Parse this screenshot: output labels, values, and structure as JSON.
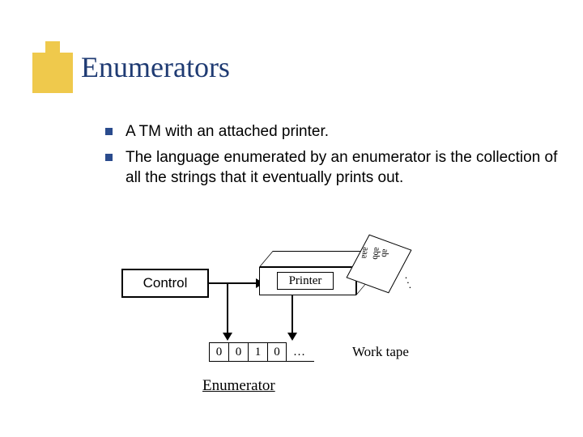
{
  "accent_color": "#efc94c",
  "title_color": "#1f3b73",
  "bullet_color": "#2a4b8d",
  "background_color": "#ffffff",
  "title": "Enumerators",
  "title_fontsize": 36,
  "bullets": [
    "A TM with an attached printer.",
    "The language enumerated by an enumerator is the collection of all the strings that it eventually prints out."
  ],
  "bullet_fontsize": 19,
  "diagram": {
    "control_label": "Control",
    "printer_label": "Printer",
    "paper_lines": [
      "ab",
      "abb",
      "aaa"
    ],
    "paper_ellipsis": ". . .",
    "tape_cells": [
      "0",
      "0",
      "1",
      "0"
    ],
    "tape_ellipsis": "…",
    "work_tape_label": "Work tape",
    "caption": "Enumerator",
    "box_border_color": "#000000",
    "tape_cell_size": 24,
    "diagram_font": "Times New Roman"
  }
}
